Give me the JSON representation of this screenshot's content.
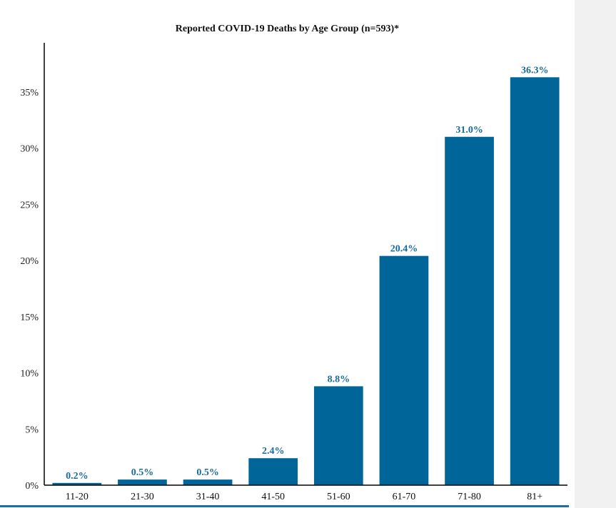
{
  "colors": {
    "bar": "#006699",
    "label": "#1a6b9c",
    "axis": "#000000",
    "rule": "#1e6f9f",
    "panel": "#f1f1f1"
  },
  "chart_data": {
    "type": "bar",
    "title": "Reported COVID-19 Deaths by Age Group (n=593)*",
    "xlabel": "",
    "ylabel": "",
    "categories": [
      "11-20",
      "21-30",
      "31-40",
      "41-50",
      "51-60",
      "61-70",
      "71-80",
      "81+"
    ],
    "values": [
      0.2,
      0.5,
      0.5,
      2.4,
      8.8,
      20.4,
      31.0,
      36.3
    ],
    "data_labels": [
      "0.2%",
      "0.5%",
      "0.5%",
      "2.4%",
      "8.8%",
      "20.4%",
      "31.0%",
      "36.3%"
    ],
    "ylim": [
      0,
      38
    ],
    "yticks": [
      0,
      5,
      10,
      15,
      20,
      25,
      30,
      35
    ],
    "ytick_labels": [
      "0%",
      "5%",
      "10%",
      "15%",
      "20%",
      "25%",
      "30%",
      "35%"
    ],
    "grid": false,
    "legend": "none"
  }
}
